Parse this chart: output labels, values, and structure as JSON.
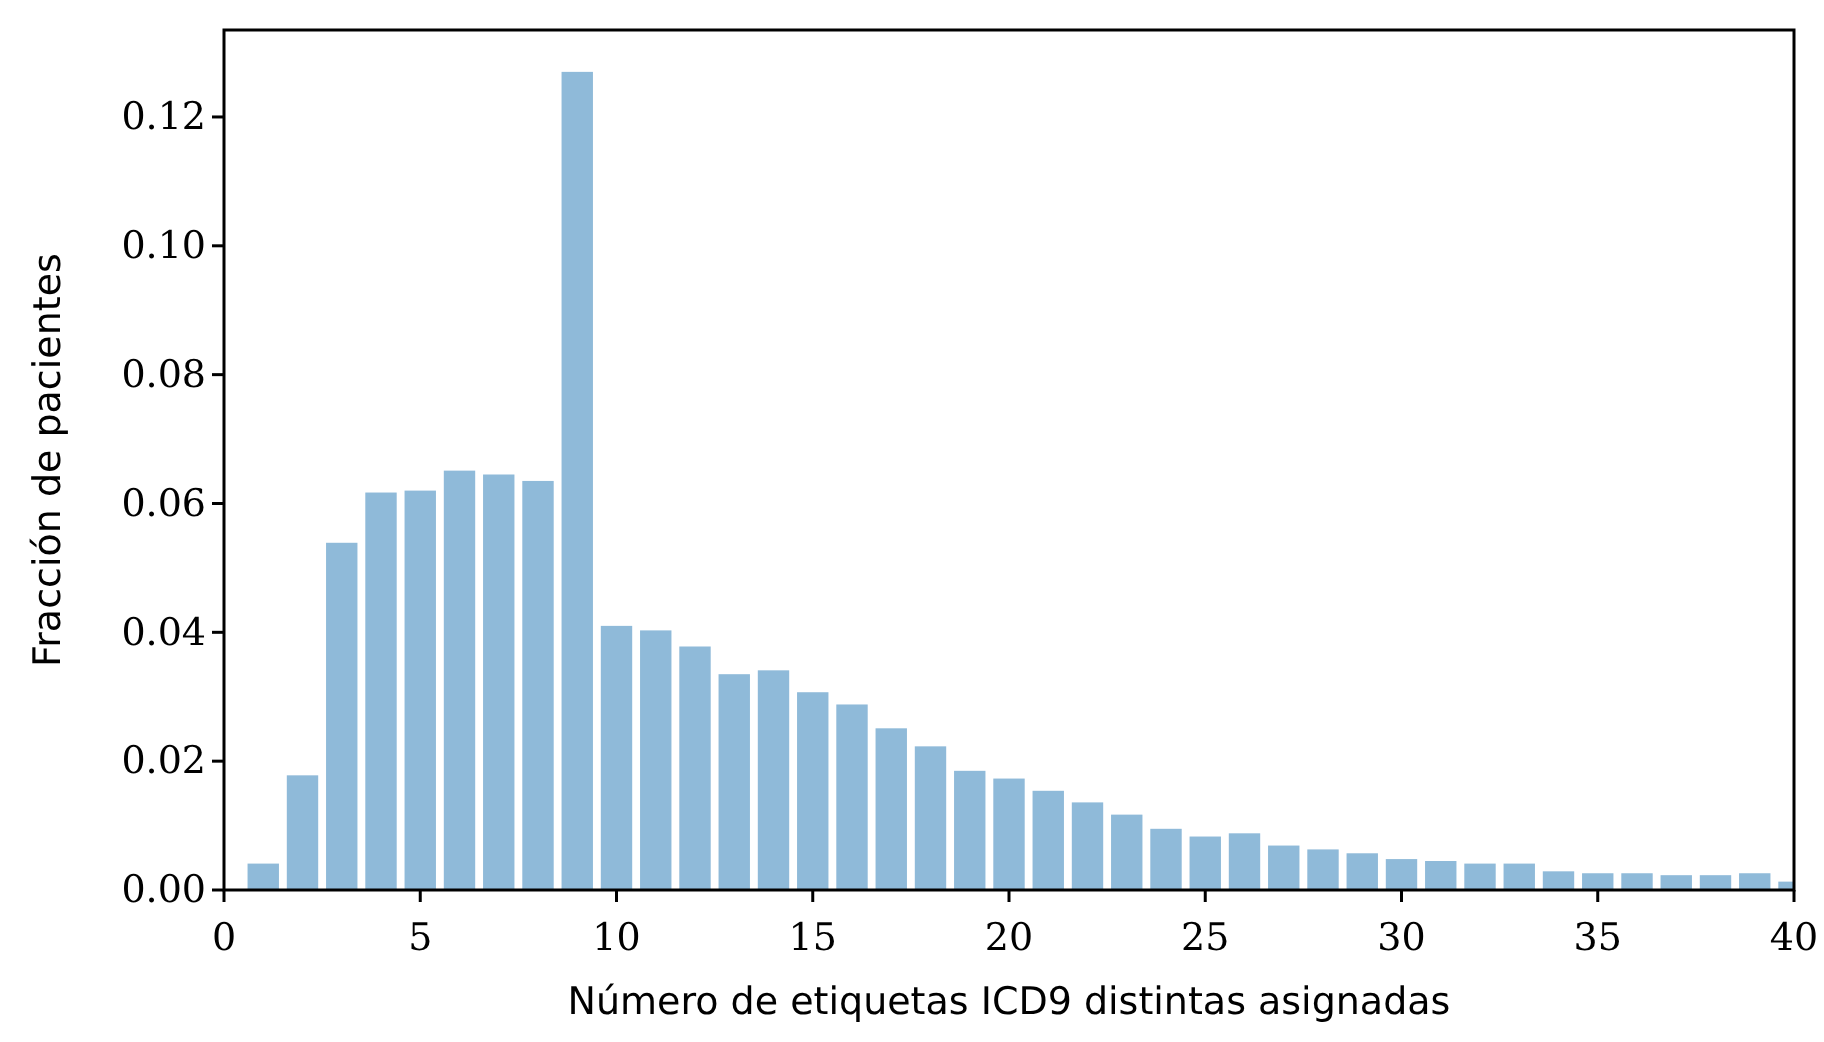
{
  "chart_data": {
    "type": "bar",
    "xlabel": "Número de etiquetas ICD9 distintas asignadas",
    "ylabel": "Fracción de pacientes",
    "x": [
      1,
      2,
      3,
      4,
      5,
      6,
      7,
      8,
      9,
      10,
      11,
      12,
      13,
      14,
      15,
      16,
      17,
      18,
      19,
      20,
      21,
      22,
      23,
      24,
      25,
      26,
      27,
      28,
      29,
      30,
      31,
      32,
      33,
      34,
      35,
      36,
      37,
      38,
      39,
      40
    ],
    "values": [
      0.0041,
      0.0178,
      0.0539,
      0.0617,
      0.062,
      0.0651,
      0.0645,
      0.0635,
      0.127,
      0.041,
      0.0403,
      0.0378,
      0.0335,
      0.0341,
      0.0307,
      0.0288,
      0.0251,
      0.0223,
      0.0185,
      0.0173,
      0.0154,
      0.0136,
      0.0117,
      0.0095,
      0.0083,
      0.0088,
      0.0069,
      0.0063,
      0.0057,
      0.0048,
      0.0045,
      0.0041,
      0.0041,
      0.0029,
      0.0026,
      0.0026,
      0.0023,
      0.0023,
      0.0026,
      0.0013
    ],
    "color": "#8fbad9",
    "xlim": [
      0,
      40
    ],
    "xticks": [
      0,
      5,
      10,
      15,
      20,
      25,
      30,
      35,
      40
    ],
    "ylim": [
      0,
      0.1335
    ],
    "yticks": [
      {
        "value": 0,
        "label": "0.00"
      },
      {
        "value": 0.02,
        "label": "0.02"
      },
      {
        "value": 0.04,
        "label": "0.04"
      },
      {
        "value": 0.06,
        "label": "0.06"
      },
      {
        "value": 0.08,
        "label": "0.08"
      },
      {
        "value": 0.1,
        "label": "0.10"
      },
      {
        "value": 0.12,
        "label": "0.12"
      }
    ],
    "grid": false
  }
}
